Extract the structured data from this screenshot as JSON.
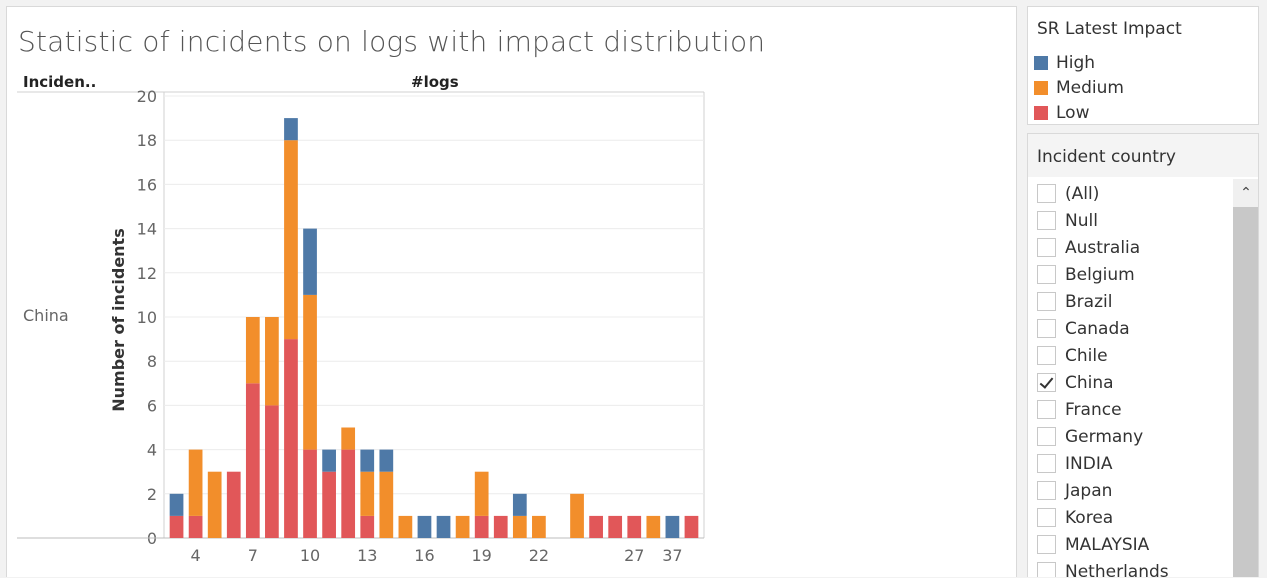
{
  "title": "Statistic of incidents on logs with impact distribution",
  "header_left": "Inciden..",
  "header_center": "#logs",
  "row_label": "China",
  "chart_data": {
    "type": "bar",
    "stacked": true,
    "title": "Statistic of incidents on logs with impact distribution",
    "xlabel": "#logs",
    "ylabel": "Number of incidents",
    "ylim": [
      0,
      20
    ],
    "yticks": [
      0,
      2,
      4,
      6,
      8,
      10,
      12,
      14,
      16,
      18,
      20
    ],
    "xtick_labels": [
      "4",
      "7",
      "10",
      "13",
      "16",
      "19",
      "22",
      "27",
      "37"
    ],
    "categories": [
      "3",
      "4",
      "5",
      "6",
      "7",
      "8",
      "9",
      "10",
      "11",
      "12",
      "13",
      "14",
      "15",
      "16",
      "17",
      "18",
      "19",
      "20",
      "21",
      "22",
      "23",
      "24",
      "25",
      "26",
      "27",
      "28",
      "37",
      "40"
    ],
    "series": [
      {
        "name": "Low",
        "color": "#e15759",
        "values": [
          1,
          1,
          0,
          3,
          7,
          6,
          9,
          4,
          3,
          4,
          1,
          0,
          0,
          0,
          0,
          0,
          1,
          1,
          0,
          0,
          0,
          0,
          1,
          1,
          1,
          0,
          0,
          1
        ]
      },
      {
        "name": "Medium",
        "color": "#f28e2b",
        "values": [
          0,
          3,
          3,
          0,
          3,
          4,
          9,
          7,
          0,
          1,
          2,
          3,
          1,
          0,
          0,
          1,
          2,
          0,
          1,
          1,
          0,
          2,
          0,
          0,
          0,
          1,
          0,
          0
        ]
      },
      {
        "name": "High",
        "color": "#4e79a7",
        "values": [
          1,
          0,
          0,
          0,
          0,
          0,
          1,
          3,
          1,
          0,
          1,
          1,
          0,
          1,
          1,
          0,
          0,
          0,
          1,
          0,
          0,
          0,
          0,
          0,
          0,
          0,
          1,
          0
        ]
      }
    ],
    "grid": true,
    "legend": "right"
  },
  "legend": {
    "title": "SR Latest Impact",
    "items": [
      {
        "label": "High",
        "color": "#4e79a7"
      },
      {
        "label": "Medium",
        "color": "#f28e2b"
      },
      {
        "label": "Low",
        "color": "#e15759"
      }
    ]
  },
  "filter": {
    "title": "Incident country",
    "items": [
      {
        "label": "(All)",
        "checked": false
      },
      {
        "label": "Null",
        "checked": false
      },
      {
        "label": "Australia",
        "checked": false
      },
      {
        "label": "Belgium",
        "checked": false
      },
      {
        "label": "Brazil",
        "checked": false
      },
      {
        "label": "Canada",
        "checked": false
      },
      {
        "label": "Chile",
        "checked": false
      },
      {
        "label": "China",
        "checked": true
      },
      {
        "label": "France",
        "checked": false
      },
      {
        "label": "Germany",
        "checked": false
      },
      {
        "label": "INDIA",
        "checked": false
      },
      {
        "label": "Japan",
        "checked": false
      },
      {
        "label": "Korea",
        "checked": false
      },
      {
        "label": "MALAYSIA",
        "checked": false
      },
      {
        "label": "Netherlands",
        "checked": false
      }
    ]
  },
  "scroll_up_icon": "chevron-up-icon"
}
